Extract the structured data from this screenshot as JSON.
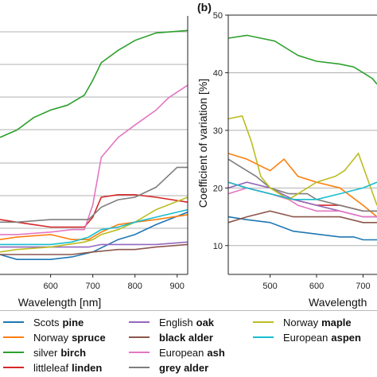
{
  "panel_b_label": "(b)",
  "left_xlabel": "Wavelength [nm]",
  "right_xlabel": "Wavelength",
  "right_ylabel": "Coefficient of variation [%]",
  "legend": [
    {
      "name": "Scots",
      "bold": "pine",
      "color": "#1f77b4"
    },
    {
      "name": "Norway",
      "bold": "spruce",
      "color": "#ff7f0e"
    },
    {
      "name": "silver",
      "bold": "birch",
      "color": "#2ca02c"
    },
    {
      "name": "littleleaf",
      "bold": "linden",
      "color": "#d62728"
    },
    {
      "name": "English",
      "bold": "oak",
      "color": "#9467bd"
    },
    {
      "name": "",
      "bold": "black alder",
      "color": "#8c564b"
    },
    {
      "name": "European",
      "bold": "ash",
      "color": "#e377c2"
    },
    {
      "name": "",
      "bold": "grey alder",
      "color": "#7f7f7f"
    },
    {
      "name": "Norway",
      "bold": "maple",
      "color": "#bcbd22"
    },
    {
      "name": "European",
      "bold": "aspen",
      "color": "#17becf"
    }
  ],
  "chart_data": [
    {
      "type": "line",
      "panel": "a",
      "xlabel": "Wavelength [nm]",
      "xlim": [
        480,
        925
      ],
      "xticks": [
        600,
        700,
        800,
        900
      ],
      "grid": true,
      "series": [
        {
          "name": "Scots pine",
          "x": [
            480,
            520,
            600,
            650,
            700,
            760,
            800,
            850,
            925
          ],
          "y": [
            0.08,
            0.06,
            0.06,
            0.07,
            0.09,
            0.14,
            0.16,
            0.2,
            0.25
          ]
        },
        {
          "name": "Norway spruce",
          "x": [
            480,
            520,
            600,
            650,
            690,
            720,
            760,
            800,
            850,
            925
          ],
          "y": [
            0.14,
            0.15,
            0.16,
            0.14,
            0.14,
            0.17,
            0.2,
            0.21,
            0.22,
            0.24
          ]
        },
        {
          "name": "silver birch",
          "x": [
            480,
            520,
            560,
            600,
            640,
            680,
            700,
            720,
            760,
            800,
            850,
            925
          ],
          "y": [
            0.55,
            0.58,
            0.63,
            0.66,
            0.68,
            0.72,
            0.78,
            0.85,
            0.9,
            0.94,
            0.97,
            0.98
          ]
        },
        {
          "name": "littleleaf linden",
          "x": [
            480,
            520,
            560,
            600,
            640,
            680,
            700,
            720,
            760,
            800,
            850,
            925
          ],
          "y": [
            0.22,
            0.21,
            0.2,
            0.19,
            0.19,
            0.19,
            0.23,
            0.31,
            0.32,
            0.32,
            0.31,
            0.29
          ]
        },
        {
          "name": "English oak",
          "x": [
            480,
            520,
            600,
            650,
            690,
            720,
            760,
            800,
            850,
            925
          ],
          "y": [
            0.11,
            0.11,
            0.11,
            0.11,
            0.11,
            0.12,
            0.12,
            0.12,
            0.12,
            0.13
          ]
        },
        {
          "name": "black alder",
          "x": [
            480,
            520,
            600,
            650,
            700,
            760,
            800,
            850,
            925
          ],
          "y": [
            0.08,
            0.08,
            0.08,
            0.08,
            0.09,
            0.1,
            0.1,
            0.11,
            0.12
          ]
        },
        {
          "name": "European ash",
          "x": [
            480,
            520,
            600,
            650,
            680,
            700,
            720,
            760,
            800,
            850,
            880,
            925
          ],
          "y": [
            0.16,
            0.16,
            0.17,
            0.18,
            0.18,
            0.28,
            0.47,
            0.55,
            0.6,
            0.66,
            0.71,
            0.76
          ]
        },
        {
          "name": "grey alder",
          "x": [
            480,
            520,
            600,
            650,
            690,
            720,
            760,
            800,
            850,
            900,
            925
          ],
          "y": [
            0.21,
            0.21,
            0.22,
            0.22,
            0.22,
            0.27,
            0.3,
            0.31,
            0.35,
            0.43,
            0.43
          ]
        },
        {
          "name": "Norway maple",
          "x": [
            480,
            520,
            600,
            640,
            680,
            700,
            720,
            760,
            800,
            850,
            925
          ],
          "y": [
            0.09,
            0.1,
            0.11,
            0.12,
            0.13,
            0.14,
            0.16,
            0.18,
            0.21,
            0.26,
            0.31
          ]
        },
        {
          "name": "European aspen",
          "x": [
            480,
            520,
            600,
            650,
            690,
            720,
            760,
            800,
            850,
            925
          ],
          "y": [
            0.12,
            0.12,
            0.12,
            0.13,
            0.15,
            0.18,
            0.19,
            0.21,
            0.23,
            0.26
          ]
        }
      ]
    },
    {
      "type": "line",
      "panel": "b",
      "ylabel": "Coefficient of variation [%]",
      "xlim": [
        410,
        730
      ],
      "ylim": [
        5,
        50
      ],
      "xticks": [
        500,
        600,
        700
      ],
      "yticks": [
        10,
        20,
        30,
        40,
        50
      ],
      "grid": true,
      "series": [
        {
          "name": "Scots pine",
          "x": [
            410,
            450,
            500,
            550,
            600,
            650,
            680,
            700,
            730
          ],
          "y": [
            15,
            14.5,
            14,
            12.5,
            12,
            11.5,
            11.5,
            11,
            11
          ]
        },
        {
          "name": "Norway spruce",
          "x": [
            410,
            450,
            500,
            530,
            560,
            600,
            650,
            700,
            730
          ],
          "y": [
            26,
            25,
            23,
            25,
            22,
            21,
            20,
            17,
            15
          ]
        },
        {
          "name": "silver birch",
          "x": [
            410,
            450,
            480,
            510,
            540,
            560,
            600,
            650,
            680,
            700,
            720,
            730
          ],
          "y": [
            46,
            46.5,
            46,
            45.5,
            44,
            43,
            42,
            41.5,
            41,
            40,
            39,
            38
          ]
        },
        {
          "name": "littleleaf linden",
          "x": [
            410,
            450,
            500,
            550,
            600,
            650,
            700,
            730
          ],
          "y": [
            21,
            20,
            19,
            18,
            17,
            17,
            16,
            16
          ]
        },
        {
          "name": "English oak",
          "x": [
            410,
            450,
            500,
            550,
            600,
            650,
            700,
            730
          ],
          "y": [
            20,
            21,
            20,
            18,
            17,
            16,
            15,
            15
          ]
        },
        {
          "name": "black alder",
          "x": [
            410,
            450,
            500,
            550,
            600,
            650,
            700,
            730
          ],
          "y": [
            14,
            15,
            16,
            15,
            15,
            15,
            14,
            14
          ]
        },
        {
          "name": "European ash",
          "x": [
            410,
            450,
            500,
            540,
            560,
            600,
            650,
            700,
            730
          ],
          "y": [
            19,
            20,
            19,
            18,
            17,
            16,
            16,
            15,
            15
          ]
        },
        {
          "name": "grey alder",
          "x": [
            410,
            430,
            470,
            500,
            540,
            580,
            600,
            650,
            700,
            730
          ],
          "y": [
            25,
            24,
            22,
            20,
            19,
            19,
            18,
            17,
            16,
            16
          ]
        },
        {
          "name": "Norway maple",
          "x": [
            410,
            440,
            460,
            480,
            500,
            520,
            540,
            560,
            600,
            640,
            660,
            690,
            730
          ],
          "y": [
            32,
            32.5,
            28,
            22,
            20,
            19,
            18,
            19,
            21,
            22,
            23,
            26,
            17
          ]
        },
        {
          "name": "European aspen",
          "x": [
            410,
            450,
            500,
            550,
            600,
            650,
            700,
            730
          ],
          "y": [
            21,
            20,
            19,
            18,
            18,
            19,
            20,
            21
          ]
        }
      ]
    }
  ]
}
